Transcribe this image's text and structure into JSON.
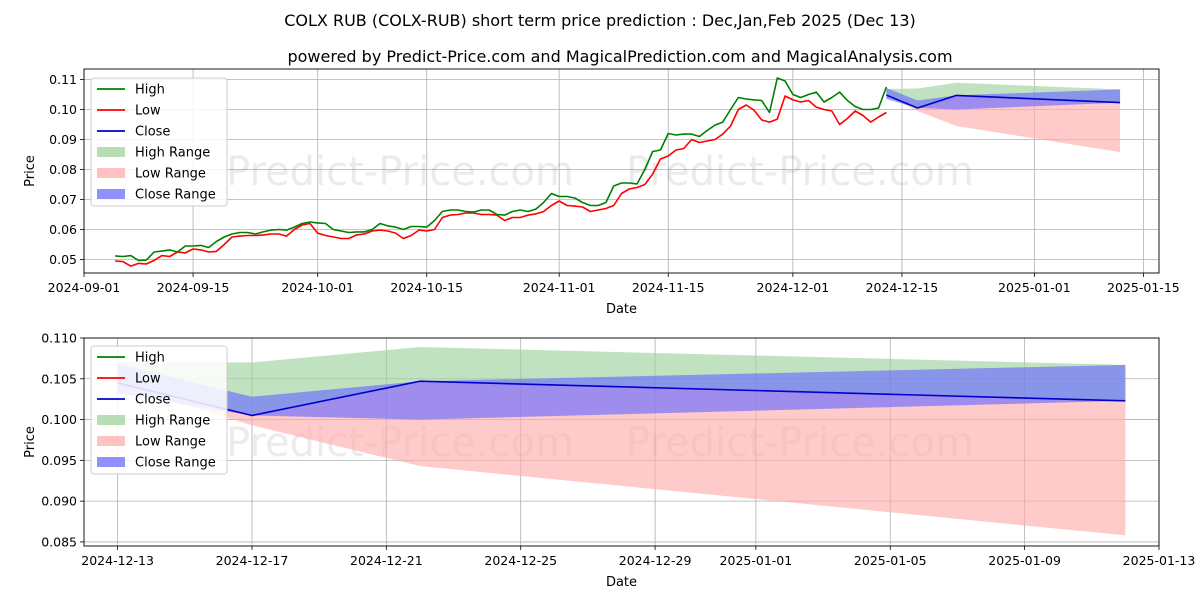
{
  "page": {
    "title": "COLX RUB (COLX-RUB) short term price prediction : Dec,Jan,Feb 2025 (Dec 13)",
    "subtitle": "powered by Predict-Price.com and MagicalPrediction.com and MagicalAnalysis.com",
    "watermark": "Predict-Price.com"
  },
  "chart_data": [
    {
      "type": "line",
      "xlabel": "Date",
      "ylabel": "Price",
      "grid": true,
      "legend": "top-left",
      "xlim": [
        "2024-09-01",
        "2025-01-17"
      ],
      "ylim": [
        0.0455,
        0.1135
      ],
      "x_ticks": [
        "2024-09-01",
        "2024-09-15",
        "2024-10-01",
        "2024-10-15",
        "2024-11-01",
        "2024-11-15",
        "2024-12-01",
        "2024-12-15",
        "2025-01-01",
        "2025-01-15"
      ],
      "y_ticks": [
        0.05,
        0.06,
        0.07,
        0.08,
        0.09,
        0.1,
        0.11
      ],
      "y_tick_labels": [
        "0.05",
        "0.06",
        "0.07",
        "0.08",
        "0.09",
        "0.10",
        "0.11"
      ],
      "legend_entries": [
        {
          "label": "High",
          "kind": "line",
          "color": "#008000"
        },
        {
          "label": "Low",
          "kind": "line",
          "color": "#ff0000"
        },
        {
          "label": "Close",
          "kind": "line",
          "color": "#0000cc"
        },
        {
          "label": "High Range",
          "kind": "fill",
          "color": "#9fd39f"
        },
        {
          "label": "Low Range",
          "kind": "fill",
          "color": "#ffadad"
        },
        {
          "label": "Close Range",
          "kind": "fill",
          "color": "#6b6bff"
        }
      ],
      "historical": {
        "dates": [
          "2024-09-05",
          "2024-09-06",
          "2024-09-07",
          "2024-09-08",
          "2024-09-09",
          "2024-09-10",
          "2024-09-11",
          "2024-09-12",
          "2024-09-13",
          "2024-09-14",
          "2024-09-15",
          "2024-09-16",
          "2024-09-17",
          "2024-09-18",
          "2024-09-19",
          "2024-09-20",
          "2024-09-21",
          "2024-09-22",
          "2024-09-23",
          "2024-09-24",
          "2024-09-25",
          "2024-09-26",
          "2024-09-27",
          "2024-09-28",
          "2024-09-29",
          "2024-09-30",
          "2024-10-01",
          "2024-10-02",
          "2024-10-03",
          "2024-10-04",
          "2024-10-05",
          "2024-10-06",
          "2024-10-07",
          "2024-10-08",
          "2024-10-09",
          "2024-10-10",
          "2024-10-11",
          "2024-10-12",
          "2024-10-13",
          "2024-10-14",
          "2024-10-15",
          "2024-10-16",
          "2024-10-17",
          "2024-10-18",
          "2024-10-19",
          "2024-10-20",
          "2024-10-21",
          "2024-10-22",
          "2024-10-23",
          "2024-10-24",
          "2024-10-25",
          "2024-10-26",
          "2024-10-27",
          "2024-10-28",
          "2024-10-29",
          "2024-10-30",
          "2024-10-31",
          "2024-11-01",
          "2024-11-02",
          "2024-11-03",
          "2024-11-04",
          "2024-11-05",
          "2024-11-06",
          "2024-11-07",
          "2024-11-08",
          "2024-11-09",
          "2024-11-10",
          "2024-11-11",
          "2024-11-12",
          "2024-11-13",
          "2024-11-14",
          "2024-11-15",
          "2024-11-16",
          "2024-11-17",
          "2024-11-18",
          "2024-11-19",
          "2024-11-20",
          "2024-11-21",
          "2024-11-22",
          "2024-11-23",
          "2024-11-24",
          "2024-11-25",
          "2024-11-26",
          "2024-11-27",
          "2024-11-28",
          "2024-11-29",
          "2024-11-30",
          "2024-12-01",
          "2024-12-02",
          "2024-12-03",
          "2024-12-04",
          "2024-12-05",
          "2024-12-06",
          "2024-12-07",
          "2024-12-08",
          "2024-12-09",
          "2024-12-10",
          "2024-12-11",
          "2024-12-12",
          "2024-12-13"
        ],
        "high": [
          0.0512,
          0.051,
          0.0513,
          0.0497,
          0.0498,
          0.0525,
          0.0528,
          0.0532,
          0.0525,
          0.0545,
          0.0545,
          0.0547,
          0.054,
          0.056,
          0.0575,
          0.0585,
          0.059,
          0.059,
          0.0585,
          0.0592,
          0.0598,
          0.06,
          0.0598,
          0.0608,
          0.062,
          0.0625,
          0.0622,
          0.062,
          0.06,
          0.0595,
          0.059,
          0.0592,
          0.0592,
          0.06,
          0.062,
          0.0612,
          0.0608,
          0.06,
          0.061,
          0.061,
          0.0608,
          0.063,
          0.066,
          0.0665,
          0.0665,
          0.066,
          0.0658,
          0.0665,
          0.0665,
          0.065,
          0.0648,
          0.066,
          0.0665,
          0.066,
          0.0668,
          0.069,
          0.072,
          0.071,
          0.071,
          0.0705,
          0.069,
          0.068,
          0.068,
          0.069,
          0.0745,
          0.0755,
          0.0755,
          0.0752,
          0.08,
          0.086,
          0.0865,
          0.092,
          0.0915,
          0.0918,
          0.0918,
          0.091,
          0.093,
          0.0948,
          0.0958,
          0.1,
          0.104,
          0.1035,
          0.1032,
          0.103,
          0.099,
          0.1105,
          0.1095,
          0.105,
          0.104,
          0.105,
          0.1058,
          0.1025,
          0.104,
          0.1058,
          0.103,
          0.101,
          0.1,
          0.1,
          0.1005,
          0.1075
        ],
        "low": [
          0.0495,
          0.0493,
          0.0478,
          0.0487,
          0.0485,
          0.0497,
          0.0513,
          0.051,
          0.0525,
          0.0522,
          0.0535,
          0.0532,
          0.0525,
          0.0527,
          0.055,
          0.0575,
          0.0578,
          0.058,
          0.058,
          0.0582,
          0.0585,
          0.0585,
          0.0578,
          0.06,
          0.0615,
          0.062,
          0.0588,
          0.058,
          0.0575,
          0.057,
          0.057,
          0.0582,
          0.0585,
          0.0595,
          0.0598,
          0.0595,
          0.0588,
          0.057,
          0.058,
          0.0598,
          0.0595,
          0.06,
          0.064,
          0.0648,
          0.065,
          0.0655,
          0.0655,
          0.065,
          0.065,
          0.0648,
          0.063,
          0.064,
          0.064,
          0.0648,
          0.0652,
          0.066,
          0.068,
          0.0695,
          0.068,
          0.0678,
          0.0675,
          0.066,
          0.0665,
          0.067,
          0.068,
          0.072,
          0.0735,
          0.074,
          0.075,
          0.0785,
          0.0835,
          0.0845,
          0.0865,
          0.087,
          0.09,
          0.089,
          0.0895,
          0.09,
          0.0918,
          0.0945,
          0.1,
          0.1015,
          0.0998,
          0.0965,
          0.0958,
          0.0968,
          0.1045,
          0.1032,
          0.1025,
          0.103,
          0.1008,
          0.1,
          0.0995,
          0.095,
          0.097,
          0.0995,
          0.098,
          0.0958,
          0.0975,
          0.099
        ]
      },
      "forecast": {
        "dates": [
          "2024-12-13",
          "2024-12-17",
          "2024-12-22",
          "2025-01-12"
        ],
        "close": [
          0.1048,
          0.1005,
          0.1047,
          0.1023
        ],
        "high_range_top": [
          0.1068,
          0.107,
          0.1089,
          0.1067
        ],
        "high_range_bottom": [
          0.1048,
          0.1005,
          0.1047,
          0.1023
        ],
        "low_range_top": [
          0.1048,
          0.1005,
          0.1047,
          0.1023
        ],
        "low_range_bottom": [
          0.1045,
          0.0995,
          0.0945,
          0.0858
        ],
        "close_range_top": [
          0.1072,
          0.103,
          0.1047,
          0.1067
        ],
        "close_range_bottom": [
          0.1035,
          0.1005,
          0.1,
          0.1023
        ]
      }
    },
    {
      "type": "line",
      "xlabel": "Date",
      "ylabel": "Price",
      "grid": true,
      "legend": "top-left",
      "xlim": [
        "2024-12-12",
        "2025-01-13"
      ],
      "ylim": [
        0.0845,
        0.11
      ],
      "x_ticks": [
        "2024-12-13",
        "2024-12-17",
        "2024-12-21",
        "2024-12-25",
        "2024-12-29",
        "2025-01-01",
        "2025-01-05",
        "2025-01-09",
        "2025-01-13"
      ],
      "y_ticks": [
        0.085,
        0.09,
        0.095,
        0.1,
        0.105,
        0.11
      ],
      "y_tick_labels": [
        "0.085",
        "0.090",
        "0.095",
        "0.100",
        "0.105",
        "0.110"
      ],
      "legend_entries": [
        {
          "label": "High",
          "kind": "line",
          "color": "#008000"
        },
        {
          "label": "Low",
          "kind": "line",
          "color": "#ff0000"
        },
        {
          "label": "Close",
          "kind": "line",
          "color": "#0000cc"
        },
        {
          "label": "High Range",
          "kind": "fill",
          "color": "#9fd39f"
        },
        {
          "label": "Low Range",
          "kind": "fill",
          "color": "#ffadad"
        },
        {
          "label": "Close Range",
          "kind": "fill",
          "color": "#6b6bff"
        }
      ],
      "forecast": {
        "dates": [
          "2024-12-13",
          "2024-12-17",
          "2024-12-22",
          "2025-01-12"
        ],
        "close": [
          0.1045,
          0.1005,
          0.1047,
          0.1023
        ],
        "high_range_top": [
          0.1071,
          0.107,
          0.1089,
          0.1067
        ],
        "high_range_bottom": [
          0.1045,
          0.1005,
          0.1047,
          0.1023
        ],
        "low_range_top": [
          0.1045,
          0.1005,
          0.1047,
          0.1023
        ],
        "low_range_bottom": [
          0.1043,
          0.0993,
          0.0943,
          0.0858
        ],
        "close_range_top": [
          0.1068,
          0.1028,
          0.1047,
          0.1067
        ],
        "close_range_bottom": [
          0.1032,
          0.1005,
          0.1,
          0.1023
        ]
      }
    }
  ]
}
